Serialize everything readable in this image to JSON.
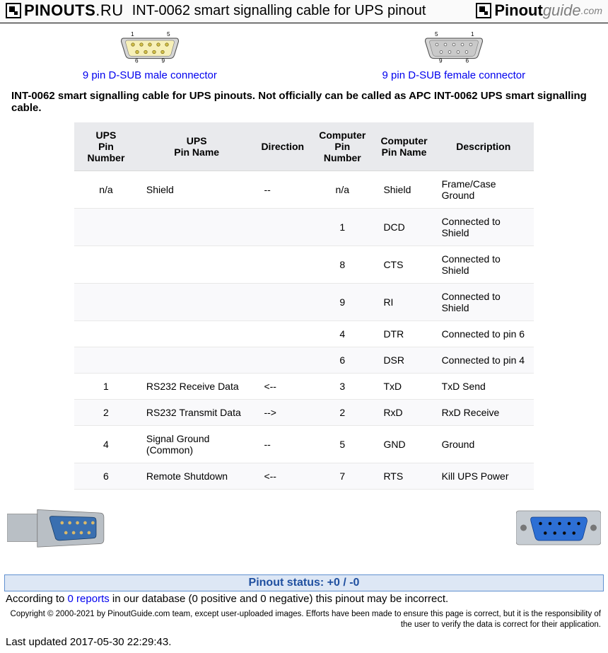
{
  "header": {
    "logo_left_text": "PINOUTS",
    "logo_left_suffix": ".RU",
    "title": "INT-0062 smart signalling cable for UPS pinout",
    "logo_right_pin": "Pinout",
    "logo_right_guide": "guide",
    "logo_right_com": ".com"
  },
  "connectors": {
    "male": {
      "label": "9 pin D-SUB male connector",
      "top_left_num": "1",
      "top_right_num": "5",
      "bot_left_num": "6",
      "bot_right_num": "9",
      "shell_fill": "#d6d6d6",
      "shell_stroke": "#555555",
      "inner_fill": "#f7f0b8",
      "pin_fill": "#d4c24a"
    },
    "female": {
      "label": "9 pin D-SUB female connector",
      "top_left_num": "5",
      "top_right_num": "1",
      "bot_left_num": "9",
      "bot_right_num": "6",
      "shell_fill": "#d6d6d6",
      "shell_stroke": "#555555",
      "inner_fill": "#c9c9c9",
      "pin_fill": "#555555"
    }
  },
  "intro": "INT-0062 smart signalling cable for UPS pinouts. Not officially can be called as APC INT-0062 UPS smart signalling cable.",
  "table": {
    "columns": [
      "UPS\nPin Number",
      "UPS\nPin Name",
      "Direction",
      "Computer\nPin Number",
      "Computer\nPin Name",
      "Description"
    ],
    "rows": [
      [
        "n/a",
        "Shield",
        "--",
        "n/a",
        "Shield",
        "Frame/Case Ground"
      ],
      [
        "",
        "",
        "",
        "1",
        "DCD",
        "Connected to Shield"
      ],
      [
        "",
        "",
        "",
        "8",
        "CTS",
        "Connected to Shield"
      ],
      [
        "",
        "",
        "",
        "9",
        "RI",
        "Connected to Shield"
      ],
      [
        "",
        "",
        "",
        "4",
        "DTR",
        "Connected to pin 6"
      ],
      [
        "",
        "",
        "",
        "6",
        "DSR",
        "Connected to pin 4"
      ],
      [
        "1",
        "RS232 Receive Data",
        "<--",
        "3",
        "TxD",
        "TxD Send"
      ],
      [
        "2",
        "RS232 Transmit Data",
        "-->",
        "2",
        "RxD",
        "RxD Receive"
      ],
      [
        "4",
        "Signal Ground (Common)",
        "--",
        "5",
        "GND",
        "Ground"
      ],
      [
        "6",
        "Remote Shutdown",
        "<--",
        "7",
        "RTS",
        "Kill UPS Power"
      ]
    ],
    "header_bg": "#e9eaed",
    "row_alt_bg": "#f9f9fb",
    "border_color": "#e8e8e8"
  },
  "photos": {
    "male": {
      "metal": "#b9bfc5",
      "insert": "#3a6fb0",
      "pin": "#d9b86a"
    },
    "female": {
      "metal": "#c6ccd2",
      "insert": "#2d6fd4",
      "hole": "#0a0a0a"
    }
  },
  "status": {
    "bar_text": "Pinout status: +0 / -0",
    "bar_bg": "#dde7f5",
    "bar_border": "#6090d0",
    "bar_color": "#2050a0",
    "text_before": "According to ",
    "link_text": "0 reports",
    "text_after": " in our database (0 positive and 0 negative) this pinout may be incorrect."
  },
  "copyright": "Copyright © 2000-2021 by PinoutGuide.com team, except user-uploaded images. Efforts have been made to ensure this page is correct, but it is the responsibility of the user to verify the data is correct for their application.",
  "updated": "Last updated 2017-05-30 22:29:43."
}
